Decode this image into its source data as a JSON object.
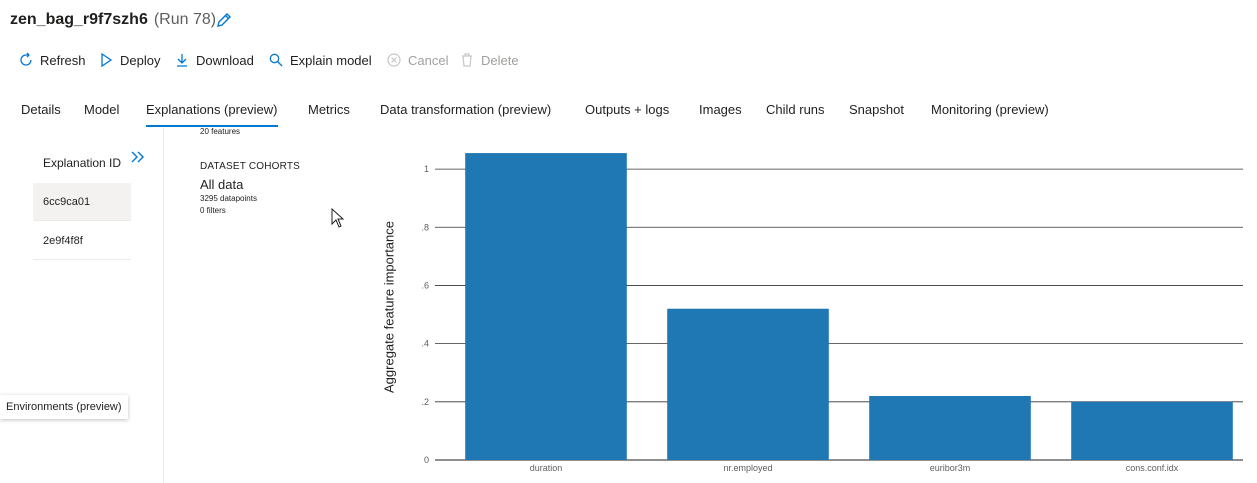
{
  "header": {
    "title": "zen_bag_r9f7szh6",
    "run": "(Run 78)"
  },
  "toolbar": {
    "refresh": "Refresh",
    "deploy": "Deploy",
    "download": "Download",
    "explain_model": "Explain model",
    "cancel": "Cancel",
    "delete": "Delete"
  },
  "tabs": {
    "details": "Details",
    "model": "Model",
    "explanations": "Explanations (preview)",
    "metrics": "Metrics",
    "data_transformation": "Data transformation (preview)",
    "outputs_logs": "Outputs + logs",
    "images": "Images",
    "child_runs": "Child runs",
    "snapshot": "Snapshot",
    "monitoring": "Monitoring (preview)"
  },
  "explanations": {
    "header": "Explanation ID",
    "items": [
      "6cc9ca01",
      "2e9f4f8f"
    ]
  },
  "cohort": {
    "features": "20 features",
    "heading": "DATASET COHORTS",
    "name": "All data",
    "datapoints": "3295 datapoints",
    "filters": "0 filters"
  },
  "tooltip": "Environments (preview)",
  "colors": {
    "accent": "#0078d4",
    "bar": "#1f77b4"
  },
  "chart_data": {
    "type": "bar",
    "categories": [
      "duration",
      "nr.employed",
      "euribor3m",
      "cons.conf.idx"
    ],
    "values": [
      1.055,
      0.52,
      0.22,
      0.2
    ],
    "title": "",
    "xlabel": "",
    "ylabel": "Aggregate feature importance",
    "ylim": [
      0,
      1.1
    ],
    "ticks": [
      0,
      0.2,
      0.4,
      0.6,
      0.8,
      1
    ],
    "tick_labels": [
      "0",
      ".2",
      ".4",
      ".6",
      ".8",
      "1"
    ],
    "grid": true
  }
}
